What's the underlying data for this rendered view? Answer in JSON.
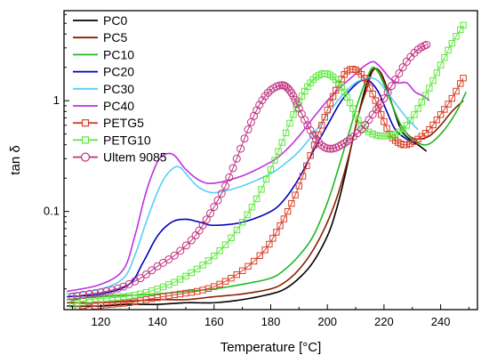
{
  "chart_data": {
    "type": "line",
    "title": "",
    "xlabel": "Temperature [°C]",
    "ylabel": "tan δ",
    "xlim": [
      107,
      253
    ],
    "ylim": [
      0.013,
      6.5
    ],
    "yscale": "log",
    "xticks": [
      120,
      140,
      160,
      180,
      200,
      220,
      240
    ],
    "yticks": [
      {
        "value": 0.1,
        "label": "0.1"
      },
      {
        "value": 1,
        "label": "1"
      }
    ],
    "legend_position": "top-left",
    "grid": false,
    "series": [
      {
        "name": "PC0",
        "color": "#000000",
        "marker": "none",
        "x": [
          108,
          120,
          130,
          140,
          150,
          160,
          170,
          180,
          185,
          190,
          195,
          200,
          203,
          206,
          209,
          212,
          214,
          216,
          218,
          220,
          223,
          226,
          229,
          232,
          235
        ],
        "y": [
          0.014,
          0.014,
          0.0145,
          0.0145,
          0.015,
          0.015,
          0.016,
          0.018,
          0.02,
          0.025,
          0.035,
          0.06,
          0.1,
          0.2,
          0.45,
          0.95,
          1.45,
          1.9,
          1.9,
          1.55,
          0.9,
          0.55,
          0.45,
          0.4,
          0.35
        ]
      },
      {
        "name": "PC5",
        "color": "#8b2000",
        "marker": "none",
        "x": [
          108,
          120,
          130,
          140,
          150,
          160,
          170,
          180,
          185,
          190,
          195,
          200,
          204,
          208,
          211,
          214,
          216,
          218,
          220,
          223,
          226,
          229,
          232,
          236,
          240,
          244,
          248
        ],
        "y": [
          0.015,
          0.015,
          0.0155,
          0.016,
          0.016,
          0.017,
          0.018,
          0.02,
          0.023,
          0.03,
          0.045,
          0.08,
          0.15,
          0.35,
          0.75,
          1.3,
          1.85,
          1.9,
          1.5,
          0.9,
          0.6,
          0.48,
          0.45,
          0.48,
          0.6,
          0.8,
          1.0
        ]
      },
      {
        "name": "PC10",
        "color": "#22b822",
        "marker": "none",
        "x": [
          108,
          120,
          130,
          140,
          150,
          160,
          170,
          180,
          185,
          190,
          195,
          200,
          204,
          208,
          211,
          214,
          216,
          218,
          220,
          223,
          226,
          230,
          235,
          240,
          245,
          249
        ],
        "y": [
          0.016,
          0.017,
          0.0175,
          0.018,
          0.019,
          0.02,
          0.022,
          0.025,
          0.03,
          0.04,
          0.06,
          0.12,
          0.25,
          0.55,
          1.0,
          1.6,
          2.0,
          1.8,
          1.4,
          0.9,
          0.6,
          0.45,
          0.4,
          0.5,
          0.75,
          1.2
        ]
      },
      {
        "name": "PC20",
        "color": "#0000bb",
        "marker": "none",
        "x": [
          108,
          120,
          130,
          135,
          140,
          145,
          150,
          155,
          160,
          170,
          180,
          185,
          190,
          195,
          200,
          205,
          210,
          213,
          215,
          218,
          221,
          224,
          228,
          232
        ],
        "y": [
          0.017,
          0.018,
          0.022,
          0.035,
          0.06,
          0.08,
          0.085,
          0.08,
          0.075,
          0.08,
          0.1,
          0.13,
          0.2,
          0.35,
          0.6,
          1.0,
          1.4,
          1.55,
          1.5,
          1.2,
          0.8,
          0.55,
          0.45,
          0.4
        ]
      },
      {
        "name": "PC30",
        "color": "#55d0f5",
        "marker": "none",
        "x": [
          108,
          120,
          128,
          132,
          136,
          140,
          143,
          146,
          148,
          150,
          154,
          158,
          162,
          170,
          180,
          185,
          190,
          195,
          200,
          205,
          210,
          214,
          216,
          218,
          220,
          224,
          228,
          232
        ],
        "y": [
          0.018,
          0.02,
          0.025,
          0.04,
          0.08,
          0.15,
          0.21,
          0.25,
          0.25,
          0.22,
          0.17,
          0.15,
          0.15,
          0.17,
          0.22,
          0.27,
          0.35,
          0.5,
          0.75,
          1.1,
          1.45,
          1.6,
          1.6,
          1.5,
          1.3,
          0.95,
          0.7,
          0.55
        ]
      },
      {
        "name": "PC40",
        "color": "#c030e0",
        "marker": "none",
        "x": [
          108,
          120,
          128,
          132,
          136,
          140,
          143,
          146,
          150,
          155,
          160,
          170,
          180,
          185,
          190,
          195,
          200,
          205,
          210,
          213,
          216,
          218,
          220,
          222,
          225,
          228,
          231,
          234,
          236
        ],
        "y": [
          0.019,
          0.022,
          0.03,
          0.06,
          0.15,
          0.28,
          0.33,
          0.32,
          0.24,
          0.19,
          0.18,
          0.21,
          0.28,
          0.35,
          0.48,
          0.7,
          1.0,
          1.35,
          1.75,
          2.05,
          2.25,
          2.1,
          1.85,
          1.6,
          1.45,
          1.45,
          1.2,
          1.1,
          1.0
        ]
      },
      {
        "name": "PETG5",
        "color": "#d84028",
        "marker": "square",
        "x": [
          112,
          118,
          124,
          130,
          136,
          142,
          148,
          154,
          160,
          166,
          172,
          178,
          182,
          186,
          190,
          194,
          198,
          201,
          204,
          207,
          210,
          213,
          216,
          219,
          222,
          225,
          228,
          232,
          236,
          240,
          244,
          248
        ],
        "y": [
          0.013,
          0.014,
          0.0145,
          0.015,
          0.016,
          0.017,
          0.018,
          0.019,
          0.021,
          0.025,
          0.032,
          0.045,
          0.065,
          0.1,
          0.17,
          0.32,
          0.6,
          0.95,
          1.4,
          1.85,
          1.9,
          1.6,
          1.15,
          0.75,
          0.5,
          0.42,
          0.4,
          0.45,
          0.55,
          0.75,
          1.05,
          1.6
        ]
      },
      {
        "name": "PETG10",
        "color": "#5ae83a",
        "marker": "square",
        "x": [
          110,
          116,
          122,
          128,
          134,
          140,
          146,
          152,
          158,
          164,
          170,
          175,
          180,
          184,
          188,
          191,
          194,
          197,
          200,
          203,
          206,
          209,
          212,
          216,
          220,
          224,
          228,
          232,
          236,
          240,
          244,
          248
        ],
        "y": [
          0.0145,
          0.016,
          0.0165,
          0.017,
          0.018,
          0.02,
          0.023,
          0.028,
          0.036,
          0.05,
          0.08,
          0.13,
          0.24,
          0.42,
          0.75,
          1.1,
          1.45,
          1.7,
          1.75,
          1.55,
          1.2,
          0.85,
          0.6,
          0.5,
          0.48,
          0.5,
          0.6,
          0.85,
          1.3,
          2.1,
          3.3,
          4.8
        ]
      },
      {
        "name": "Ultem 9085",
        "color": "#c03080",
        "marker": "circle",
        "x": [
          110,
          116,
          122,
          128,
          134,
          140,
          146,
          152,
          156,
          160,
          164,
          168,
          172,
          175,
          178,
          181,
          184,
          186,
          188,
          190,
          193,
          196,
          199,
          202,
          205,
          208,
          212,
          216,
          220,
          224,
          228,
          232,
          235
        ],
        "y": [
          0.017,
          0.018,
          0.019,
          0.021,
          0.025,
          0.032,
          0.04,
          0.055,
          0.075,
          0.11,
          0.17,
          0.3,
          0.55,
          0.82,
          1.1,
          1.3,
          1.38,
          1.3,
          1.1,
          0.85,
          0.6,
          0.45,
          0.38,
          0.37,
          0.4,
          0.45,
          0.55,
          0.75,
          1.05,
          1.55,
          2.25,
          2.9,
          3.2
        ]
      }
    ]
  }
}
